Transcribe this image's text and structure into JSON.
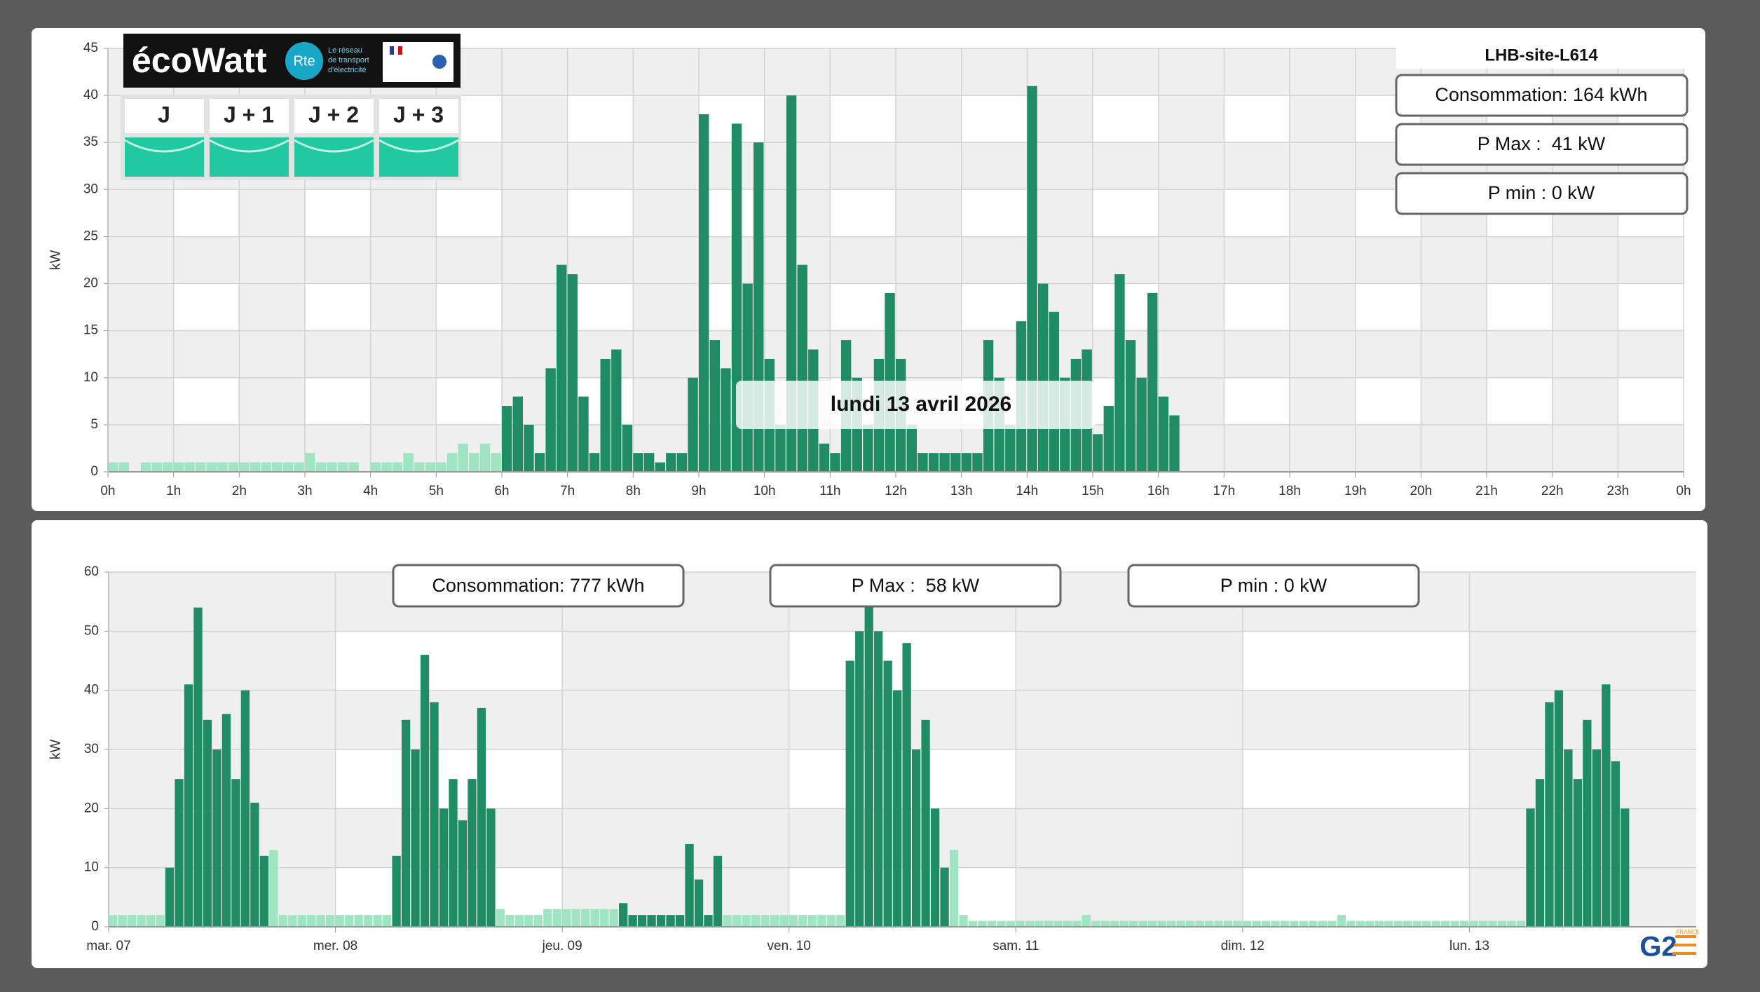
{
  "ecowatt": {
    "brand": "écoWatt",
    "rte": "Rte",
    "tagline": [
      "Le réseau",
      "de transport",
      "d'électricité"
    ],
    "days": [
      "J",
      "J + 1",
      "J + 2",
      "J + 3"
    ]
  },
  "g2_logo": {
    "text": "G2",
    "country": "FRANCE"
  },
  "chart_data": [
    {
      "type": "bar",
      "title": "LHB-site-L614",
      "y_label": "kW",
      "stats": [
        "Consommation: 164 kWh",
        "P Max :  41 kW",
        "P min : 0 kW"
      ],
      "date_label": "lundi 13 avril 2026",
      "xlim": [
        0,
        1440
      ],
      "xticks": [
        {
          "value": 0,
          "label": "0h"
        },
        {
          "value": 60,
          "label": "1h"
        },
        {
          "value": 120,
          "label": "2h"
        },
        {
          "value": 180,
          "label": "3h"
        },
        {
          "value": 240,
          "label": "4h"
        },
        {
          "value": 300,
          "label": "5h"
        },
        {
          "value": 360,
          "label": "6h"
        },
        {
          "value": 420,
          "label": "7h"
        },
        {
          "value": 480,
          "label": "8h"
        },
        {
          "value": 540,
          "label": "9h"
        },
        {
          "value": 600,
          "label": "10h"
        },
        {
          "value": 660,
          "label": "11h"
        },
        {
          "value": 720,
          "label": "12h"
        },
        {
          "value": 780,
          "label": "13h"
        },
        {
          "value": 840,
          "label": "14h"
        },
        {
          "value": 900,
          "label": "15h"
        },
        {
          "value": 960,
          "label": "16h"
        },
        {
          "value": 1020,
          "label": "17h"
        },
        {
          "value": 1080,
          "label": "18h"
        },
        {
          "value": 1140,
          "label": "19h"
        },
        {
          "value": 1200,
          "label": "20h"
        },
        {
          "value": 1260,
          "label": "21h"
        },
        {
          "value": 1320,
          "label": "22h"
        },
        {
          "value": 1380,
          "label": "23h"
        },
        {
          "value": 1440,
          "label": "0h"
        }
      ],
      "ylim": [
        0,
        45
      ],
      "yticks": [
        0,
        5,
        10,
        15,
        20,
        25,
        30,
        35,
        40,
        45
      ],
      "grid": true,
      "series": [
        {
          "color": "#9fe5c2",
          "x": [
            0,
            10,
            20,
            30,
            40,
            50,
            60,
            70,
            80,
            90,
            100,
            110,
            120,
            130,
            140,
            150,
            160,
            170,
            180,
            190,
            200,
            210,
            220,
            230,
            240,
            250,
            260,
            270,
            280,
            290,
            300,
            310,
            320,
            330,
            340,
            350
          ],
          "values": [
            1,
            1,
            0,
            1,
            1,
            1,
            1,
            1,
            1,
            1,
            1,
            1,
            1,
            1,
            1,
            1,
            1,
            1,
            2,
            1,
            1,
            1,
            1,
            0,
            1,
            1,
            1,
            2,
            1,
            1,
            1,
            2,
            3,
            2,
            3,
            2
          ]
        },
        {
          "color": "#1f8c66",
          "x": [
            360,
            370,
            380,
            390,
            400,
            410,
            420,
            430,
            440,
            450,
            460,
            470,
            480,
            490,
            500,
            510,
            520,
            530,
            540,
            550,
            560,
            570,
            580,
            590,
            600,
            610,
            620,
            630,
            640,
            650,
            660,
            670,
            680,
            690,
            700,
            710,
            720,
            730,
            740,
            750,
            760,
            770,
            780,
            790,
            800,
            810,
            820,
            830,
            840,
            850,
            860,
            870,
            880,
            890,
            900,
            910,
            920,
            930,
            940,
            950,
            960,
            970
          ],
          "values": [
            7,
            8,
            5,
            2,
            11,
            22,
            21,
            8,
            2,
            12,
            13,
            5,
            2,
            2,
            1,
            2,
            2,
            10,
            38,
            14,
            11,
            37,
            20,
            35,
            12,
            5,
            40,
            22,
            13,
            3,
            2,
            14,
            10,
            5,
            12,
            19,
            12,
            5,
            2,
            2,
            2,
            2,
            2,
            2,
            14,
            10,
            5,
            16,
            41,
            20,
            17,
            10,
            12,
            13,
            4,
            7,
            21,
            14,
            10,
            19,
            8,
            6
          ]
        }
      ]
    },
    {
      "type": "bar",
      "y_label": "kW",
      "stats": [
        "Consommation: 777 kWh",
        "P Max :  58 kW",
        "P min : 0 kW"
      ],
      "xlim": [
        0,
        168
      ],
      "xticks": [
        {
          "value": 0,
          "label": "mar. 07"
        },
        {
          "value": 24,
          "label": "mer. 08"
        },
        {
          "value": 48,
          "label": "jeu. 09"
        },
        {
          "value": 72,
          "label": "ven. 10"
        },
        {
          "value": 96,
          "label": "sam. 11"
        },
        {
          "value": 120,
          "label": "dim. 12"
        },
        {
          "value": 144,
          "label": "lun. 13"
        }
      ],
      "ylim": [
        0,
        60
      ],
      "yticks": [
        0,
        10,
        20,
        30,
        40,
        50,
        60
      ],
      "grid": true,
      "series": [
        {
          "color": "#9fe5c2",
          "x": [
            0,
            1,
            2,
            3,
            4,
            5,
            17,
            18,
            19,
            20,
            21,
            22,
            23,
            24,
            25,
            26,
            27,
            28,
            29,
            41,
            42,
            43,
            44,
            45,
            46,
            47,
            48,
            49,
            50,
            51,
            52,
            53,
            65,
            66,
            67,
            68,
            69,
            70,
            71,
            72,
            73,
            74,
            75,
            76,
            77,
            89,
            90,
            91,
            92,
            93,
            94,
            95,
            96,
            97,
            98,
            99,
            100,
            101,
            102,
            103,
            104,
            105,
            106,
            107,
            108,
            109,
            110,
            111,
            112,
            113,
            114,
            115,
            116,
            117,
            118,
            119,
            120,
            121,
            122,
            123,
            124,
            125,
            126,
            127,
            128,
            129,
            130,
            131,
            132,
            133,
            134,
            135,
            136,
            137,
            138,
            139,
            140,
            141,
            142,
            143,
            144,
            145,
            146,
            147,
            148,
            149
          ],
          "values": [
            2,
            2,
            2,
            2,
            2,
            2,
            13,
            2,
            2,
            2,
            2,
            2,
            2,
            2,
            2,
            2,
            2,
            2,
            2,
            3,
            2,
            2,
            2,
            2,
            3,
            3,
            3,
            3,
            3,
            3,
            3,
            3,
            2,
            2,
            2,
            2,
            2,
            2,
            2,
            2,
            2,
            2,
            2,
            2,
            2,
            13,
            2,
            1,
            1,
            1,
            1,
            1,
            1,
            1,
            1,
            1,
            1,
            1,
            1,
            2,
            1,
            1,
            1,
            1,
            1,
            1,
            1,
            1,
            1,
            1,
            1,
            1,
            1,
            1,
            1,
            1,
            1,
            1,
            1,
            1,
            1,
            1,
            1,
            1,
            1,
            1,
            2,
            1,
            1,
            1,
            1,
            1,
            1,
            1,
            1,
            1,
            1,
            1,
            1,
            1,
            1,
            1,
            1,
            1,
            1,
            1
          ]
        },
        {
          "color": "#1f8c66",
          "x": [
            6,
            7,
            8,
            9,
            10,
            11,
            12,
            13,
            14,
            15,
            16,
            30,
            31,
            32,
            33,
            34,
            35,
            36,
            37,
            38,
            39,
            40,
            54,
            55,
            56,
            57,
            58,
            59,
            60,
            61,
            62,
            63,
            64,
            78,
            79,
            80,
            81,
            82,
            83,
            84,
            85,
            86,
            87,
            88,
            150,
            151,
            152,
            153,
            154,
            155,
            156,
            157,
            158,
            159,
            160
          ],
          "values": [
            10,
            25,
            41,
            54,
            35,
            30,
            36,
            25,
            40,
            21,
            12,
            12,
            35,
            30,
            46,
            38,
            20,
            25,
            18,
            25,
            37,
            20,
            4,
            2,
            2,
            2,
            2,
            2,
            2,
            14,
            8,
            2,
            12,
            45,
            50,
            58,
            50,
            45,
            40,
            48,
            30,
            35,
            20,
            10,
            20,
            25,
            38,
            40,
            30,
            25,
            35,
            30,
            41,
            28,
            20
          ]
        }
      ]
    }
  ]
}
